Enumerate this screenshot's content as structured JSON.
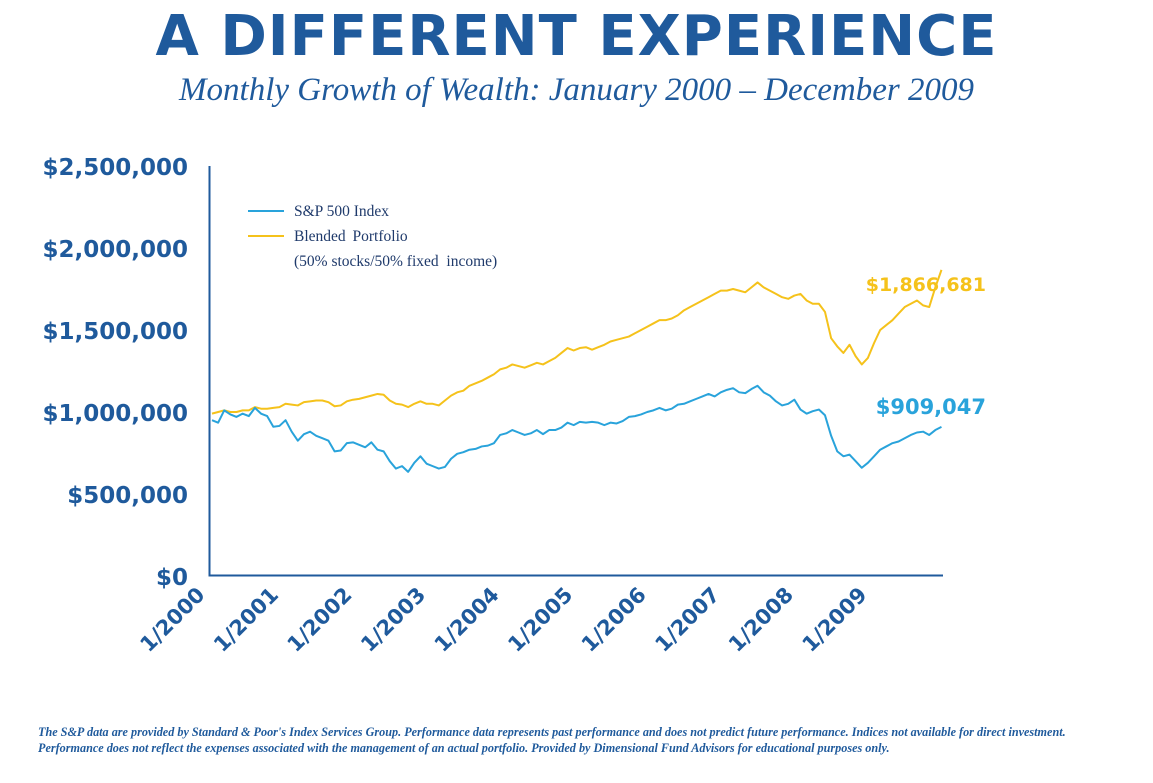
{
  "header": {
    "title": "A DIFFERENT EXPERIENCE",
    "subtitle": "Monthly Growth of Wealth: January 2000 – December 2009"
  },
  "footnote": "The S&P data are provided by Standard & Poor's Index Services Group. Performance data represents past performance and does not predict future performance. Indices not available for direct investment. Performance does not reflect the expenses associated with the management of an actual portfolio. Provided by Dimensional Fund Advisors for educational purposes only.",
  "colors": {
    "title": "#1f5a9c",
    "axis": "#1f5a9c",
    "sp500": "#29a3db",
    "blended": "#f5c21b"
  },
  "chart_data": {
    "type": "line",
    "title": "",
    "xlabel": "",
    "ylabel": "",
    "ylim": [
      0,
      2500000
    ],
    "y_ticks": [
      0,
      500000,
      1000000,
      1500000,
      2000000,
      2500000
    ],
    "y_tick_labels": [
      "$0",
      "$500,000",
      "$1,000,000",
      "$1,500,000",
      "$2,000,000",
      "$2,500,000"
    ],
    "x_range": [
      "1/2000",
      "12/2009"
    ],
    "x_ticks": [
      "1/2000",
      "1/2001",
      "1/2002",
      "1/2003",
      "1/2004",
      "1/2005",
      "1/2006",
      "1/2007",
      "1/2008",
      "1/2009"
    ],
    "grid": false,
    "legend_position": "top-left",
    "series": [
      {
        "name": "S&P 500 Index",
        "color": "#29a3db",
        "end_label": "$909,047",
        "values": [
          950000,
          935000,
          1010000,
          985000,
          970000,
          990000,
          975000,
          1025000,
          990000,
          975000,
          910000,
          915000,
          950000,
          880000,
          825000,
          865000,
          880000,
          855000,
          840000,
          825000,
          760000,
          765000,
          810000,
          815000,
          800000,
          785000,
          815000,
          770000,
          760000,
          700000,
          655000,
          670000,
          635000,
          690000,
          730000,
          685000,
          670000,
          655000,
          665000,
          715000,
          745000,
          755000,
          770000,
          775000,
          790000,
          795000,
          810000,
          860000,
          870000,
          890000,
          875000,
          860000,
          870000,
          890000,
          865000,
          890000,
          890000,
          905000,
          935000,
          920000,
          940000,
          935000,
          940000,
          935000,
          920000,
          935000,
          930000,
          945000,
          970000,
          975000,
          985000,
          1000000,
          1010000,
          1025000,
          1010000,
          1020000,
          1045000,
          1050000,
          1065000,
          1080000,
          1095000,
          1110000,
          1095000,
          1120000,
          1135000,
          1145000,
          1120000,
          1115000,
          1140000,
          1160000,
          1120000,
          1100000,
          1065000,
          1040000,
          1050000,
          1075000,
          1015000,
          990000,
          1005000,
          1015000,
          980000,
          855000,
          760000,
          730000,
          740000,
          700000,
          660000,
          690000,
          730000,
          770000,
          790000,
          810000,
          820000,
          840000,
          860000,
          875000,
          880000,
          860000,
          890000,
          909047
        ]
      },
      {
        "name": "Blended Portfolio",
        "name_line2": "(50% stocks/50% fixed  income)",
        "color": "#f5c21b",
        "end_label": "$1,866,681",
        "values": [
          990000,
          1000000,
          1010000,
          1000000,
          1000000,
          1010000,
          1010000,
          1030000,
          1020000,
          1020000,
          1025000,
          1030000,
          1050000,
          1045000,
          1040000,
          1060000,
          1065000,
          1070000,
          1070000,
          1060000,
          1035000,
          1040000,
          1065000,
          1075000,
          1080000,
          1090000,
          1100000,
          1110000,
          1105000,
          1070000,
          1050000,
          1045000,
          1030000,
          1050000,
          1065000,
          1050000,
          1050000,
          1040000,
          1070000,
          1100000,
          1120000,
          1130000,
          1160000,
          1175000,
          1190000,
          1210000,
          1230000,
          1260000,
          1270000,
          1290000,
          1280000,
          1270000,
          1285000,
          1300000,
          1290000,
          1310000,
          1330000,
          1360000,
          1390000,
          1375000,
          1390000,
          1395000,
          1380000,
          1395000,
          1410000,
          1430000,
          1440000,
          1450000,
          1460000,
          1480000,
          1500000,
          1520000,
          1540000,
          1560000,
          1560000,
          1570000,
          1590000,
          1620000,
          1640000,
          1660000,
          1680000,
          1700000,
          1720000,
          1740000,
          1740000,
          1750000,
          1740000,
          1730000,
          1760000,
          1790000,
          1760000,
          1740000,
          1720000,
          1700000,
          1690000,
          1710000,
          1720000,
          1680000,
          1660000,
          1660000,
          1610000,
          1450000,
          1400000,
          1360000,
          1410000,
          1340000,
          1290000,
          1330000,
          1420000,
          1500000,
          1530000,
          1560000,
          1600000,
          1640000,
          1660000,
          1680000,
          1650000,
          1640000,
          1760000,
          1866681
        ]
      }
    ]
  }
}
